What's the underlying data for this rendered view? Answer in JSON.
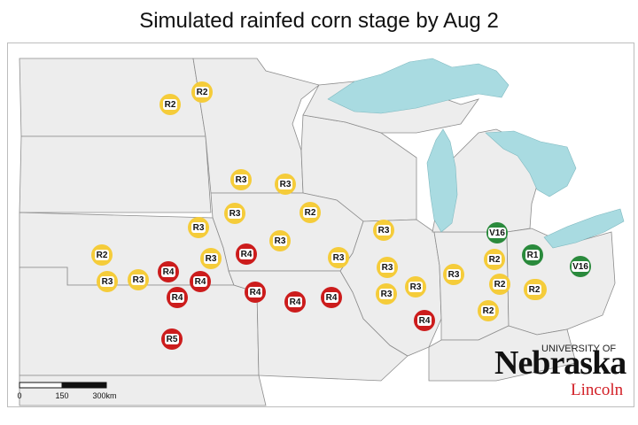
{
  "title": "Simulated rainfed corn stage by Aug 2",
  "colors": {
    "R-early": "#f5cc3a",
    "R4-R5": "#cc1c1c",
    "V-stage": "#2a8a3c",
    "lake": "#a9dbe1",
    "state_fill": "#ededed",
    "border": "#8c8c8c"
  },
  "markers": [
    {
      "label": "R2"
    },
    {
      "label": "R2"
    },
    {
      "label": "R3"
    },
    {
      "label": "R3"
    },
    {
      "label": "R3"
    },
    {
      "label": "R2"
    },
    {
      "label": "R3"
    },
    {
      "label": "R3"
    },
    {
      "label": "R3"
    },
    {
      "label": "R2"
    },
    {
      "label": "R3"
    },
    {
      "label": "R3"
    },
    {
      "label": "R3"
    },
    {
      "label": "R4"
    },
    {
      "label": "R3"
    },
    {
      "label": "R3"
    },
    {
      "label": "R4"
    },
    {
      "label": "R4"
    },
    {
      "label": "R4"
    },
    {
      "label": "R4"
    },
    {
      "label": "R4"
    },
    {
      "label": "R4"
    },
    {
      "label": "R5"
    },
    {
      "label": "R3"
    },
    {
      "label": "R3"
    },
    {
      "label": "R3"
    },
    {
      "label": "R4"
    },
    {
      "label": "R2"
    },
    {
      "label": "V16"
    },
    {
      "label": "R2"
    },
    {
      "label": "R2"
    },
    {
      "label": "R2"
    },
    {
      "label": "R1"
    },
    {
      "label": "R2"
    },
    {
      "label": "V16"
    }
  ],
  "scale_bar": {
    "labels": [
      "0",
      "150",
      "300km"
    ]
  },
  "logo": {
    "university": "UNIVERSITY OF",
    "name": "Nebraska",
    "campus": "Lincoln"
  }
}
